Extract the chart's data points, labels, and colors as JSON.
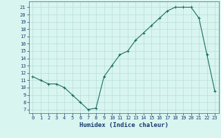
{
  "x": [
    0,
    1,
    2,
    3,
    4,
    5,
    6,
    7,
    8,
    9,
    10,
    11,
    12,
    13,
    14,
    15,
    16,
    17,
    18,
    19,
    20,
    21,
    22,
    23
  ],
  "y": [
    11.5,
    11.0,
    10.5,
    10.5,
    10.0,
    9.0,
    8.0,
    7.0,
    7.2,
    11.5,
    13.0,
    14.5,
    15.0,
    16.5,
    17.5,
    18.5,
    19.5,
    20.5,
    21.0,
    21.0,
    21.0,
    19.5,
    14.5,
    9.5
  ],
  "xlabel": "Humidex (Indice chaleur)",
  "xlim_min": -0.5,
  "xlim_max": 23.5,
  "ylim_min": 6.5,
  "ylim_max": 21.8,
  "yticks": [
    7,
    8,
    9,
    10,
    11,
    12,
    13,
    14,
    15,
    16,
    17,
    18,
    19,
    20,
    21
  ],
  "xticks": [
    0,
    1,
    2,
    3,
    4,
    5,
    6,
    7,
    8,
    9,
    10,
    11,
    12,
    13,
    14,
    15,
    16,
    17,
    18,
    19,
    20,
    21,
    22,
    23
  ],
  "line_color": "#1a6b5e",
  "marker": "+",
  "bg_color": "#d8f5f0",
  "grid_color": "#b8ddd8",
  "xlabel_color": "#1a3a6e",
  "xlabel_fontsize": 6.5,
  "tick_fontsize": 5.0
}
